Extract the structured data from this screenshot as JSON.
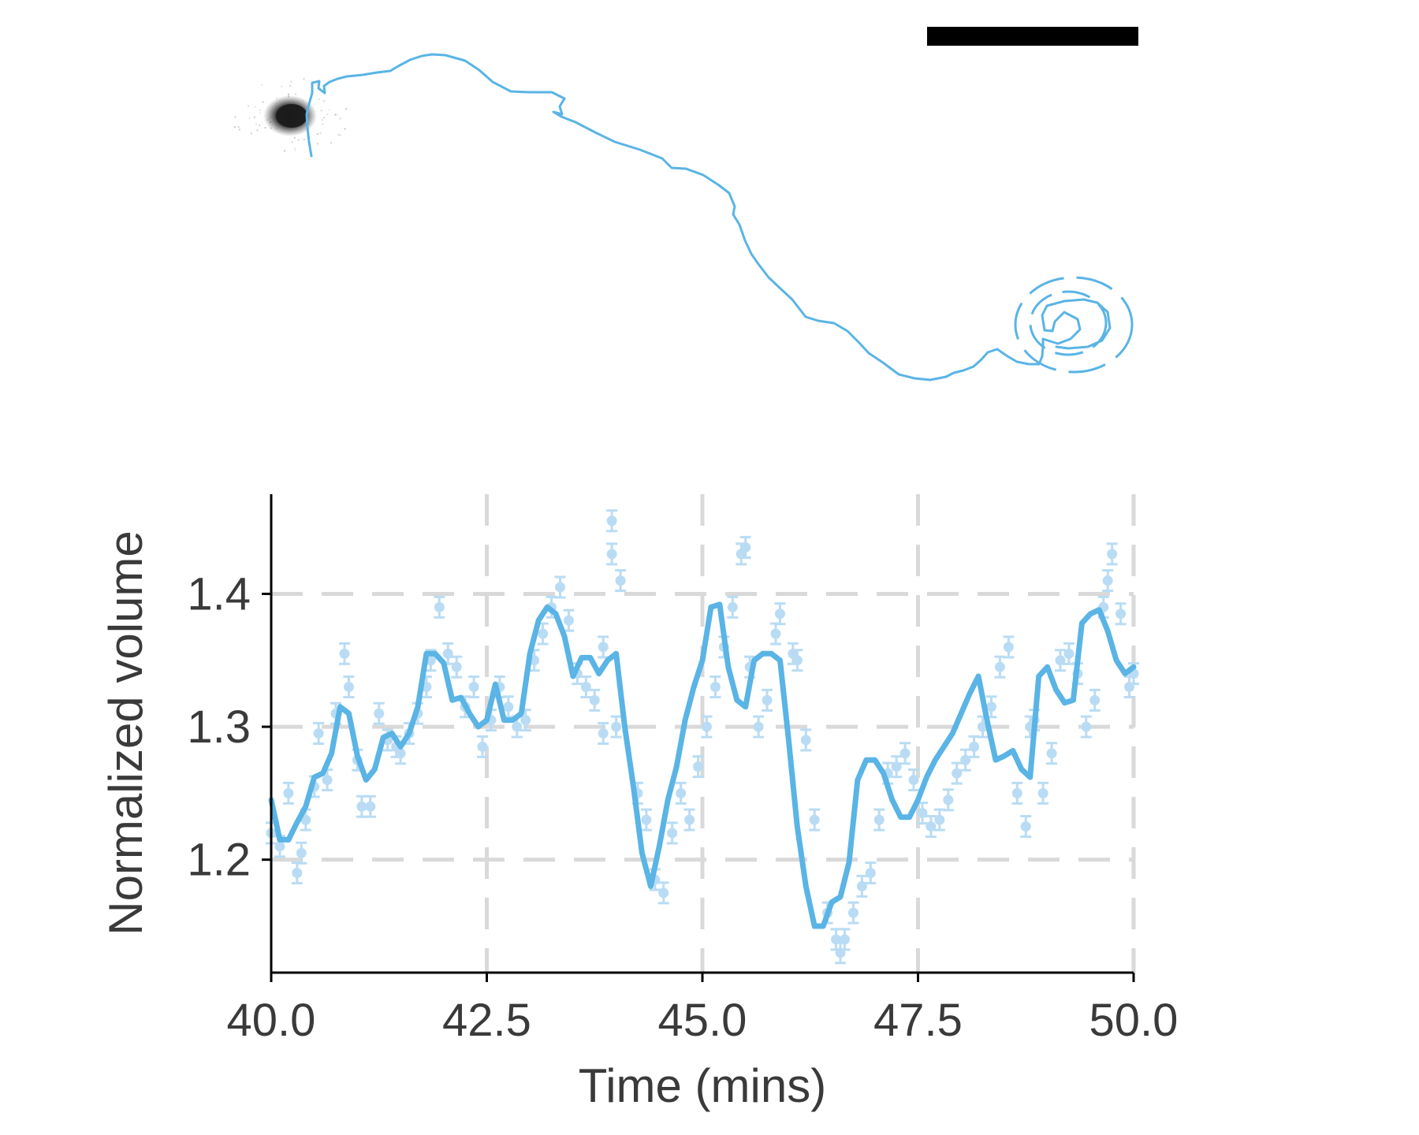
{
  "colors": {
    "trace": "#5ab4e5",
    "points": "#b9dcf4",
    "grid": "#d9d9d9",
    "axis": "#000000",
    "text": "#3a3a3a",
    "scale_bar": "#000000",
    "cell_blob": "#1a1a1a"
  },
  "track_panel": {
    "trajectory": [
      [
        395,
        198
      ],
      [
        392,
        180
      ],
      [
        390,
        162
      ],
      [
        389,
        145
      ],
      [
        392,
        132
      ],
      [
        396,
        118
      ],
      [
        396,
        105
      ],
      [
        405,
        103
      ],
      [
        404,
        112
      ],
      [
        412,
        118
      ],
      [
        411,
        109
      ],
      [
        418,
        104
      ],
      [
        428,
        100
      ],
      [
        440,
        97
      ],
      [
        460,
        95
      ],
      [
        478,
        92
      ],
      [
        495,
        90
      ],
      [
        505,
        84
      ],
      [
        520,
        76
      ],
      [
        535,
        71
      ],
      [
        548,
        69
      ],
      [
        565,
        70
      ],
      [
        590,
        77
      ],
      [
        608,
        89
      ],
      [
        625,
        104
      ],
      [
        648,
        116
      ],
      [
        672,
        117
      ],
      [
        700,
        117
      ],
      [
        716,
        125
      ],
      [
        710,
        135
      ],
      [
        713,
        145
      ],
      [
        702,
        142
      ],
      [
        712,
        148
      ],
      [
        730,
        155
      ],
      [
        755,
        168
      ],
      [
        780,
        180
      ],
      [
        812,
        190
      ],
      [
        840,
        201
      ],
      [
        852,
        213
      ],
      [
        870,
        214
      ],
      [
        892,
        222
      ],
      [
        912,
        235
      ],
      [
        925,
        245
      ],
      [
        932,
        262
      ],
      [
        930,
        272
      ],
      [
        938,
        285
      ],
      [
        945,
        305
      ],
      [
        953,
        322
      ],
      [
        962,
        335
      ],
      [
        975,
        352
      ],
      [
        992,
        368
      ],
      [
        1005,
        380
      ],
      [
        1015,
        393
      ],
      [
        1022,
        402
      ],
      [
        1038,
        407
      ],
      [
        1058,
        410
      ],
      [
        1075,
        420
      ],
      [
        1090,
        435
      ],
      [
        1102,
        448
      ],
      [
        1120,
        460
      ],
      [
        1140,
        475
      ],
      [
        1160,
        480
      ],
      [
        1180,
        482
      ],
      [
        1200,
        478
      ],
      [
        1210,
        473
      ],
      [
        1222,
        470
      ],
      [
        1235,
        465
      ],
      [
        1245,
        456
      ],
      [
        1253,
        447
      ],
      [
        1265,
        443
      ],
      [
        1278,
        452
      ],
      [
        1290,
        459
      ],
      [
        1305,
        462
      ],
      [
        1318,
        462
      ],
      [
        1322,
        452
      ]
    ],
    "spiral": [
      [
        1322,
        452
      ],
      [
        1323,
        440
      ],
      [
        1323,
        430
      ],
      [
        1342,
        436
      ],
      [
        1358,
        430
      ],
      [
        1370,
        418
      ],
      [
        1367,
        405
      ],
      [
        1350,
        396
      ],
      [
        1338,
        408
      ],
      [
        1335,
        420
      ],
      [
        1325,
        419
      ],
      [
        1322,
        400
      ],
      [
        1328,
        388
      ],
      [
        1350,
        382
      ],
      [
        1375,
        380
      ],
      [
        1392,
        384
      ],
      [
        1405,
        396
      ],
      [
        1408,
        416
      ],
      [
        1398,
        432
      ],
      [
        1380,
        440
      ],
      [
        1355,
        442
      ],
      [
        1340,
        440
      ]
    ],
    "rings": [
      {
        "cx": 1355,
        "cy": 410,
        "rx": 48,
        "ry": 40
      },
      {
        "cx": 1362,
        "cy": 412,
        "rx": 74,
        "ry": 60
      }
    ],
    "blob": {
      "cx": 368,
      "cy": 147
    }
  },
  "chart_data": {
    "type": "line",
    "title": "",
    "xlabel": "Time (mins)",
    "ylabel": "Normalized volume",
    "xlim": [
      40.0,
      50.0
    ],
    "ylim": [
      1.115,
      1.475
    ],
    "xticks": [
      40.0,
      42.5,
      45.0,
      47.5,
      50.0
    ],
    "xtick_labels": [
      "40.0",
      "42.5",
      "45.0",
      "47.5",
      "50.0"
    ],
    "yticks": [
      1.2,
      1.3,
      1.4
    ],
    "ytick_labels": [
      "1.2",
      "1.3",
      "1.4"
    ],
    "grid": true,
    "legend": "none",
    "series": [
      {
        "style": "line",
        "x": [
          40.0,
          40.1,
          40.2,
          40.3,
          40.4,
          40.5,
          40.6,
          40.7,
          40.8,
          40.9,
          41.0,
          41.1,
          41.2,
          41.3,
          41.4,
          41.5,
          41.6,
          41.7,
          41.8,
          41.9,
          42.0,
          42.1,
          42.2,
          42.3,
          42.4,
          42.5,
          42.6,
          42.7,
          42.8,
          42.9,
          43.0,
          43.1,
          43.2,
          43.3,
          43.4,
          43.5,
          43.6,
          43.7,
          43.8,
          43.9,
          44.0,
          44.1,
          44.2,
          44.3,
          44.4,
          44.5,
          44.6,
          44.7,
          44.8,
          44.9,
          45.0,
          45.1,
          45.2,
          45.3,
          45.4,
          45.5,
          45.6,
          45.7,
          45.8,
          45.9,
          46.0,
          46.1,
          46.2,
          46.3,
          46.4,
          46.5,
          46.6,
          46.7,
          46.8,
          46.9,
          47.0,
          47.1,
          47.2,
          47.3,
          47.4,
          47.5,
          47.6,
          47.7,
          47.8,
          47.9,
          48.0,
          48.1,
          48.2,
          48.3,
          48.4,
          48.5,
          48.6,
          48.7,
          48.8,
          48.9,
          49.0,
          49.1,
          49.2,
          49.3,
          49.4,
          49.5,
          49.6,
          49.7,
          49.8,
          49.9,
          50.0
        ],
        "y": [
          1.245,
          1.215,
          1.215,
          1.228,
          1.24,
          1.262,
          1.265,
          1.28,
          1.315,
          1.31,
          1.278,
          1.26,
          1.268,
          1.292,
          1.295,
          1.285,
          1.295,
          1.315,
          1.355,
          1.355,
          1.348,
          1.32,
          1.322,
          1.31,
          1.3,
          1.305,
          1.332,
          1.305,
          1.305,
          1.31,
          1.355,
          1.38,
          1.39,
          1.385,
          1.368,
          1.338,
          1.352,
          1.352,
          1.34,
          1.35,
          1.355,
          1.3,
          1.255,
          1.205,
          1.18,
          1.21,
          1.245,
          1.27,
          1.305,
          1.33,
          1.35,
          1.39,
          1.392,
          1.345,
          1.32,
          1.315,
          1.35,
          1.355,
          1.355,
          1.35,
          1.29,
          1.225,
          1.18,
          1.15,
          1.15,
          1.168,
          1.172,
          1.198,
          1.26,
          1.275,
          1.275,
          1.265,
          1.245,
          1.232,
          1.232,
          1.245,
          1.262,
          1.275,
          1.285,
          1.295,
          1.31,
          1.325,
          1.338,
          1.305,
          1.275,
          1.278,
          1.282,
          1.268,
          1.262,
          1.338,
          1.345,
          1.328,
          1.318,
          1.32,
          1.378,
          1.385,
          1.388,
          1.372,
          1.35,
          1.34,
          1.345
        ]
      },
      {
        "style": "points",
        "x": [
          40.0,
          40.1,
          40.2,
          40.3,
          40.35,
          40.4,
          40.5,
          40.55,
          40.65,
          40.75,
          40.85,
          40.9,
          41.0,
          41.05,
          41.15,
          41.25,
          41.35,
          41.45,
          41.5,
          41.6,
          41.7,
          41.8,
          41.85,
          41.95,
          42.05,
          42.15,
          42.25,
          42.35,
          42.45,
          42.55,
          42.65,
          42.75,
          42.85,
          42.95,
          43.05,
          43.15,
          43.25,
          43.35,
          43.45,
          43.55,
          43.65,
          43.75,
          43.85,
          43.85,
          43.95,
          43.95,
          44.0,
          44.05,
          44.25,
          44.35,
          44.45,
          44.55,
          44.65,
          44.75,
          44.85,
          44.95,
          45.05,
          45.15,
          45.25,
          45.35,
          45.45,
          45.5,
          45.55,
          45.65,
          45.75,
          45.85,
          45.9,
          46.05,
          46.1,
          46.2,
          46.3,
          46.45,
          46.55,
          46.6,
          46.65,
          46.75,
          46.85,
          46.95,
          47.05,
          47.15,
          47.25,
          47.35,
          47.45,
          47.55,
          47.65,
          47.75,
          47.85,
          47.95,
          48.05,
          48.15,
          48.25,
          48.35,
          48.45,
          48.55,
          48.65,
          48.75,
          48.8,
          48.85,
          48.95,
          49.05,
          49.15,
          49.25,
          49.35,
          49.45,
          49.55,
          49.65,
          49.7,
          49.75,
          49.85,
          49.95,
          50.0
        ],
        "y": [
          1.22,
          1.21,
          1.25,
          1.19,
          1.205,
          1.23,
          1.255,
          1.295,
          1.26,
          1.31,
          1.355,
          1.33,
          1.275,
          1.24,
          1.24,
          1.31,
          1.29,
          1.285,
          1.28,
          1.295,
          1.31,
          1.33,
          1.35,
          1.39,
          1.355,
          1.345,
          1.315,
          1.33,
          1.285,
          1.305,
          1.33,
          1.315,
          1.3,
          1.305,
          1.35,
          1.37,
          1.39,
          1.405,
          1.38,
          1.34,
          1.33,
          1.32,
          1.36,
          1.295,
          1.43,
          1.455,
          1.3,
          1.41,
          1.25,
          1.23,
          1.185,
          1.175,
          1.22,
          1.25,
          1.23,
          1.27,
          1.3,
          1.33,
          1.36,
          1.39,
          1.43,
          1.435,
          1.345,
          1.3,
          1.32,
          1.37,
          1.385,
          1.355,
          1.35,
          1.29,
          1.23,
          1.16,
          1.14,
          1.13,
          1.14,
          1.16,
          1.18,
          1.19,
          1.23,
          1.265,
          1.27,
          1.28,
          1.26,
          1.235,
          1.225,
          1.23,
          1.245,
          1.265,
          1.275,
          1.285,
          1.3,
          1.315,
          1.345,
          1.36,
          1.25,
          1.225,
          1.3,
          1.305,
          1.25,
          1.28,
          1.35,
          1.355,
          1.34,
          1.3,
          1.32,
          1.39,
          1.41,
          1.43,
          1.385,
          1.33,
          1.34
        ]
      }
    ]
  }
}
